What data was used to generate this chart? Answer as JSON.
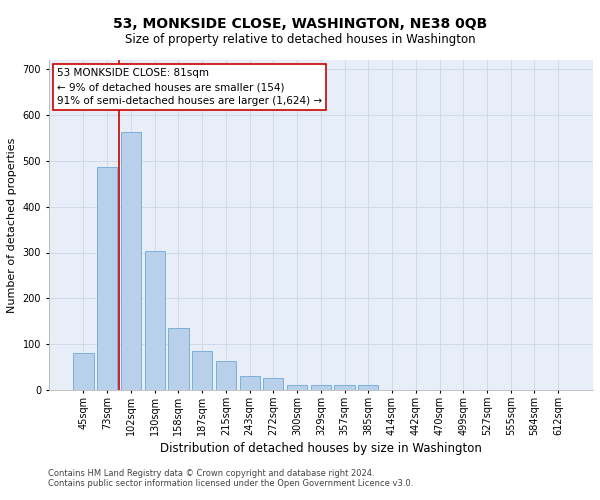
{
  "title": "53, MONKSIDE CLOSE, WASHINGTON, NE38 0QB",
  "subtitle": "Size of property relative to detached houses in Washington",
  "xlabel": "Distribution of detached houses by size in Washington",
  "ylabel": "Number of detached properties",
  "footer_line1": "Contains HM Land Registry data © Crown copyright and database right 2024.",
  "footer_line2": "Contains public sector information licensed under the Open Government Licence v3.0.",
  "bar_labels": [
    "45sqm",
    "73sqm",
    "102sqm",
    "130sqm",
    "158sqm",
    "187sqm",
    "215sqm",
    "243sqm",
    "272sqm",
    "300sqm",
    "329sqm",
    "357sqm",
    "385sqm",
    "414sqm",
    "442sqm",
    "470sqm",
    "499sqm",
    "527sqm",
    "555sqm",
    "584sqm",
    "612sqm"
  ],
  "bar_values": [
    80,
    487,
    563,
    303,
    136,
    85,
    63,
    31,
    27,
    10,
    10,
    10,
    10,
    0,
    0,
    0,
    0,
    0,
    0,
    0,
    0
  ],
  "bar_color": "#b8d0ea",
  "bar_edge_color": "#6ea8d8",
  "grid_color": "#d0d8ea",
  "background_color": "#e8eef8",
  "vline_color": "#cc0000",
  "vline_x": 1.5,
  "annotation_box_text": "53 MONKSIDE CLOSE: 81sqm\n← 9% of detached houses are smaller (154)\n91% of semi-detached houses are larger (1,624) →",
  "annotation_box_color": "#cc0000",
  "ylim": [
    0,
    720
  ],
  "yticks": [
    0,
    100,
    200,
    300,
    400,
    500,
    600,
    700
  ],
  "figsize": [
    6.0,
    5.0
  ],
  "dpi": 100,
  "title_fontsize": 10,
  "subtitle_fontsize": 8.5,
  "ylabel_fontsize": 8,
  "xlabel_fontsize": 8.5,
  "tick_fontsize": 7,
  "footer_fontsize": 6,
  "ann_fontsize": 7.5
}
